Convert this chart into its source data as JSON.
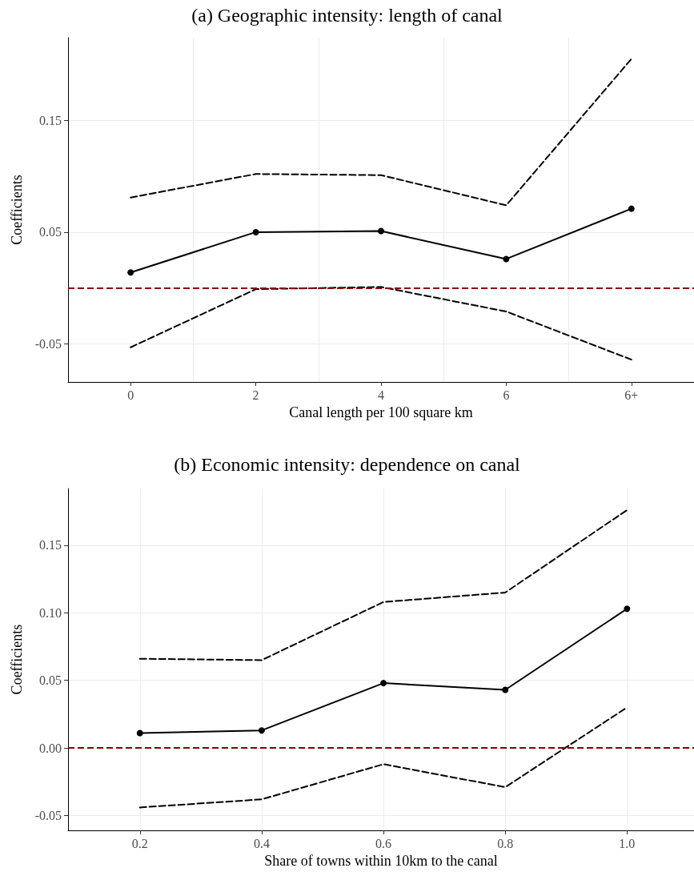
{
  "chart_data": [
    {
      "type": "line",
      "title": "(a) Geographic intensity: length of canal",
      "xlabel": "Canal length per 100 square km",
      "ylabel": "Coefficients",
      "categories": [
        "0",
        "2",
        "4",
        "6",
        "6+"
      ],
      "series": [
        {
          "color": "#000000",
          "marker": "circle",
          "line_style": "solid",
          "values": [
            0.014,
            0.05,
            0.051,
            0.026,
            0.071
          ]
        },
        {
          "color": "#000000",
          "marker": "none",
          "line_style": "dashed",
          "values": [
            0.081,
            0.102,
            0.101,
            0.074,
            0.205
          ]
        },
        {
          "color": "#000000",
          "marker": "none",
          "line_style": "dashed",
          "values": [
            -0.053,
            -0.001,
            0.001,
            -0.021,
            -0.064
          ]
        }
      ],
      "ylim": [
        -0.084,
        0.224
      ],
      "yticks": [
        -0.05,
        0.05,
        0.15
      ],
      "grid": true,
      "ref_lines": [
        {
          "axis": "y",
          "value": 0,
          "color": "#8b0000",
          "line_style": "dashed"
        }
      ]
    },
    {
      "type": "line",
      "title": "(b) Economic intensity: dependence on canal",
      "xlabel": "Share of towns within 10km to the canal",
      "ylabel": "Coefficients",
      "x": [
        0.2,
        0.4,
        0.6,
        0.8,
        1.0
      ],
      "series": [
        {
          "color": "#000000",
          "marker": "circle",
          "line_style": "solid",
          "values": [
            0.011,
            0.013,
            0.048,
            0.043,
            0.103
          ]
        },
        {
          "color": "#000000",
          "marker": "none",
          "line_style": "dashed",
          "values": [
            0.066,
            0.065,
            0.108,
            0.115,
            0.176
          ]
        },
        {
          "color": "#000000",
          "marker": "none",
          "line_style": "dashed",
          "values": [
            -0.044,
            -0.038,
            -0.012,
            -0.029,
            0.03
          ]
        }
      ],
      "xlim": [
        0.082,
        1.11
      ],
      "xticks": [
        0.2,
        0.4,
        0.6,
        0.8,
        {
          "value": 1,
          "label": "1.0"
        }
      ],
      "ylim": [
        -0.061,
        0.192
      ],
      "yticks": [
        -0.05,
        {
          "value": 0,
          "label": "0.00"
        },
        0.05,
        {
          "value": 0.1,
          "label": "0.10"
        },
        0.15
      ],
      "grid": true,
      "ref_lines": [
        {
          "axis": "y",
          "value": 0,
          "color": "#8b0000",
          "line_style": "dashed"
        }
      ]
    }
  ]
}
